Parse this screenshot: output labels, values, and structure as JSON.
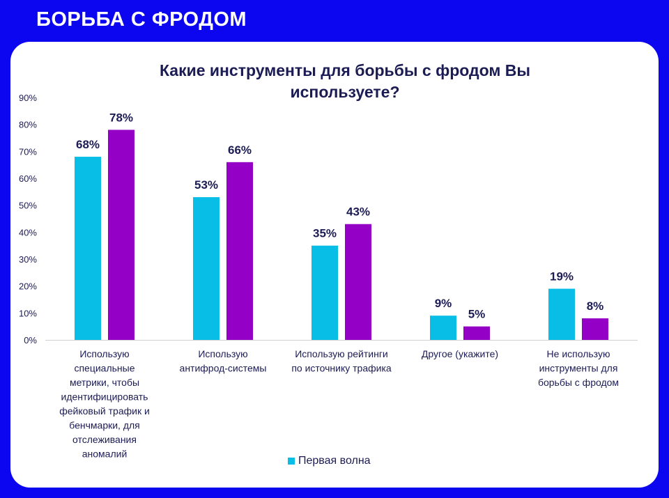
{
  "header": {
    "title": "БОРЬБА С ФРОДОМ"
  },
  "colors": {
    "series1": "#08bde6",
    "series2": "#9500c7",
    "text": "#1c1c55",
    "axis": "#d0d0d0"
  },
  "chart_data": {
    "type": "bar",
    "title": "Какие инструменты для борьбы с фродом Вы используете?",
    "categories": [
      [
        "Использую",
        "специальные",
        "метрики, чтобы",
        "идентифицировать",
        "фейковый трафик и",
        "бенчмарки, для",
        "отслеживания",
        "аномалий"
      ],
      [
        "Использую",
        "антифрод-системы"
      ],
      [
        "Использую рейтинги",
        "по источнику трафика"
      ],
      [
        "Другое (укажите)"
      ],
      [
        "Не использую",
        "инструменты для",
        "борьбы с фродом"
      ]
    ],
    "series": [
      {
        "name": "Первая волна",
        "values": [
          68,
          53,
          35,
          9,
          19
        ]
      },
      {
        "name": "",
        "values": [
          78,
          66,
          43,
          5,
          8
        ]
      }
    ],
    "value_labels": [
      [
        "68%",
        "53%",
        "35%",
        "9%",
        "19%"
      ],
      [
        "78%",
        "66%",
        "43%",
        "5%",
        "8%"
      ]
    ],
    "ylim": [
      0,
      90
    ],
    "yticks": [
      "0%",
      "10%",
      "20%",
      "30%",
      "40%",
      "50%",
      "60%",
      "70%",
      "80%",
      "90%"
    ],
    "xlabel": "",
    "ylabel": "",
    "legend": {
      "position": "bottom",
      "entries": [
        "Первая волна"
      ]
    }
  }
}
